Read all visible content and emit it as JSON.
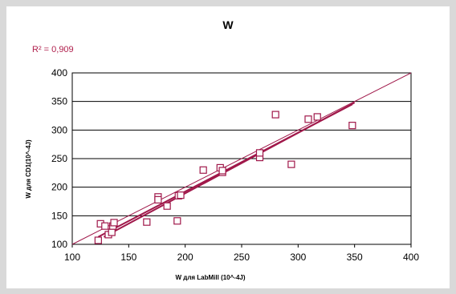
{
  "colors": {
    "background": "#d9d9d9",
    "panel": "#ffffff",
    "series": "#a0184a",
    "grid": "#000000"
  },
  "chart_data": {
    "type": "scatter",
    "title": "W",
    "xlabel": "W для LabMill (10^-4J)",
    "ylabel": "W для CD1(10^-4J)",
    "annotation": "R² = 0,909",
    "xlim": [
      100,
      400
    ],
    "ylim": [
      100,
      400
    ],
    "xticks": [
      100,
      150,
      200,
      250,
      300,
      350,
      400
    ],
    "yticks": [
      100,
      150,
      200,
      250,
      300,
      350,
      400
    ],
    "grid": "horizontal",
    "series": [
      {
        "points": [
          [
            123,
            107
          ],
          [
            125,
            136
          ],
          [
            129,
            132
          ],
          [
            132,
            117
          ],
          [
            135,
            121
          ],
          [
            136,
            132
          ],
          [
            137,
            138
          ],
          [
            166,
            139
          ],
          [
            176,
            183
          ],
          [
            176,
            178
          ],
          [
            184,
            167
          ],
          [
            193,
            141
          ],
          [
            194,
            185
          ],
          [
            196,
            186
          ],
          [
            216,
            230
          ],
          [
            231,
            234
          ],
          [
            233,
            226
          ],
          [
            233,
            229
          ],
          [
            266,
            252
          ],
          [
            266,
            260
          ],
          [
            280,
            327
          ],
          [
            294,
            240
          ],
          [
            309,
            319
          ],
          [
            317,
            323
          ],
          [
            348,
            308
          ]
        ]
      }
    ],
    "lines": [
      {
        "kind": "trendline",
        "x": [
          123,
          348
        ],
        "y": [
          113,
          345
        ]
      },
      {
        "kind": "trendline",
        "x": [
          128,
          350
        ],
        "y": [
          113,
          348
        ]
      },
      {
        "kind": "identity",
        "x": [
          100,
          400
        ],
        "y": [
          100,
          400
        ]
      }
    ]
  }
}
